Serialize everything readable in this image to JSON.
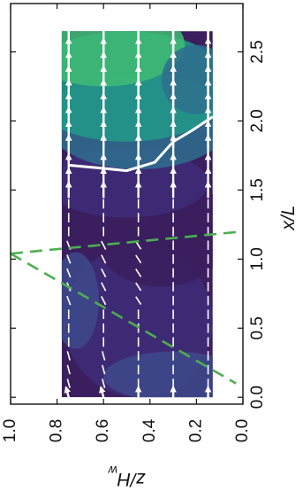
{
  "chart_data": {
    "type": "heatmap",
    "orientation": "rotated-90-ccw",
    "xlabel": "x/L",
    "ylabel": "z/H_w",
    "xlim": [
      -0.05,
      2.85
    ],
    "ylim": [
      0.0,
      1.0
    ],
    "x_ticks": [
      "0.0",
      "0.5",
      "1.0",
      "1.5",
      "2.0",
      "2.5"
    ],
    "y_ticks": [
      "0.0",
      "0.2",
      "0.4",
      "0.6",
      "0.8",
      "1.0"
    ],
    "grid": false,
    "field": {
      "x_range": [
        0.0,
        2.65
      ],
      "z_range": [
        0.13,
        0.78
      ],
      "colormap": [
        "#3b1e5e",
        "#3f2d78",
        "#3d4a8c",
        "#2f6f8e",
        "#229a8a",
        "#3fbc73"
      ]
    },
    "vectors": {
      "x_stations": [
        0.0,
        0.1,
        0.2,
        0.3,
        0.4,
        0.5,
        0.6,
        0.7,
        0.8,
        0.9,
        1.0,
        1.1,
        1.2,
        1.3,
        1.4,
        1.5,
        1.6,
        1.7,
        1.8,
        1.9,
        2.0,
        2.1,
        2.2,
        2.3,
        2.4,
        2.5,
        2.6,
        2.7,
        2.8
      ],
      "z_stations": [
        0.75,
        0.6,
        0.45,
        0.3,
        0.15
      ]
    },
    "isoline": {
      "color": "#ffffff",
      "points": [
        [
          1.68,
          0.75
        ],
        [
          1.66,
          0.62
        ],
        [
          1.64,
          0.5
        ],
        [
          1.7,
          0.38
        ],
        [
          1.85,
          0.3
        ],
        [
          1.93,
          0.22
        ],
        [
          2.03,
          0.13
        ]
      ]
    },
    "dashed_lines": {
      "color": "#4caf50",
      "lines": [
        [
          [
            1.04,
            1.0
          ],
          [
            0.1,
            0.03
          ]
        ],
        [
          [
            1.04,
            1.0
          ],
          [
            1.2,
            0.0
          ]
        ]
      ]
    }
  }
}
